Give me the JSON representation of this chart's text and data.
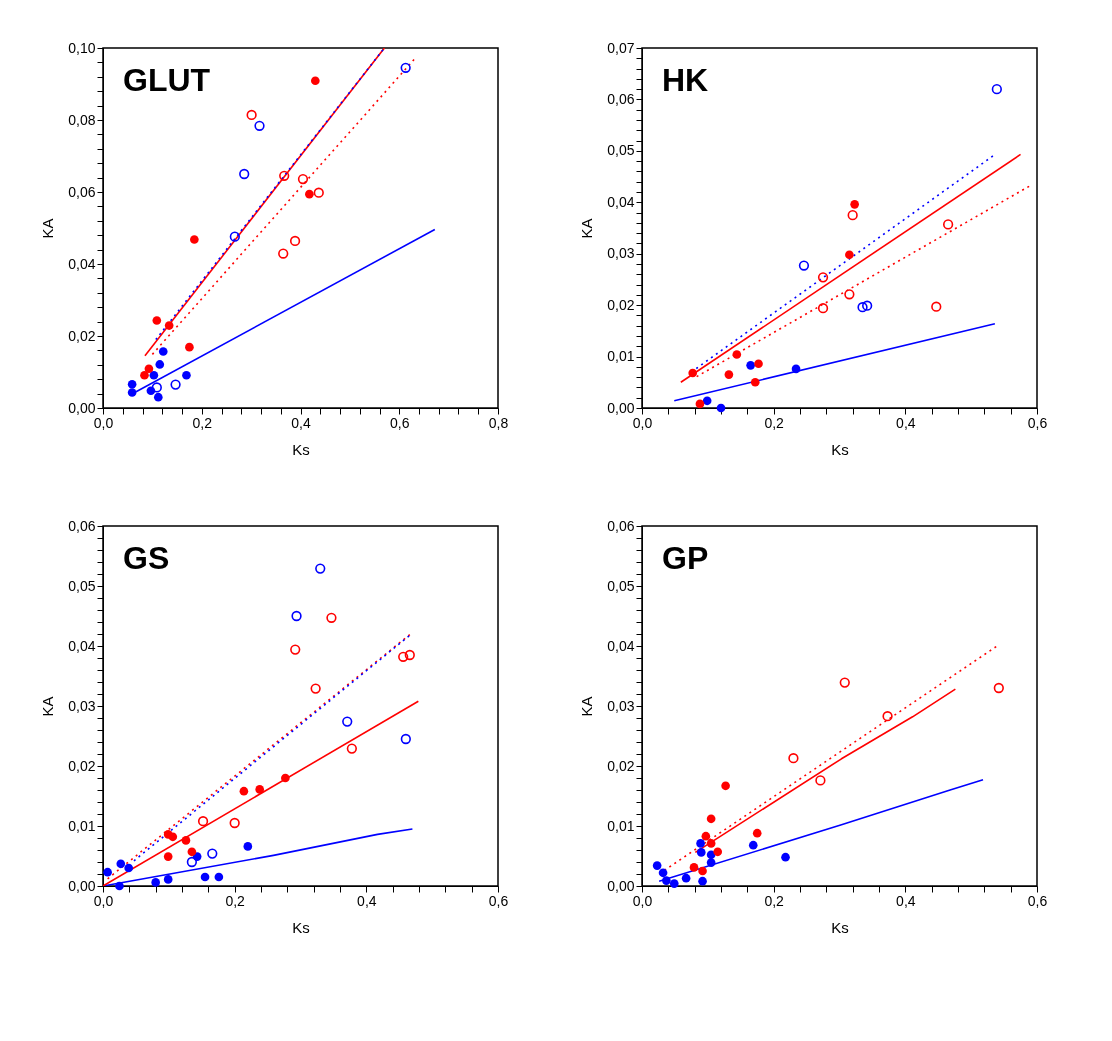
{
  "chart_data": [
    {
      "type": "scatter",
      "title": "GLUT",
      "xlabel": "Ks",
      "ylabel": "KA",
      "grid": false,
      "xlim": [
        0,
        0.8
      ],
      "ylim": [
        0,
        0.1
      ],
      "xticks": [
        {
          "value": 0,
          "label": "0,0"
        },
        {
          "value": 0.04,
          "label": null
        },
        {
          "value": 0.08,
          "label": null
        },
        {
          "value": 0.12,
          "label": null
        },
        {
          "value": 0.16,
          "label": null
        },
        {
          "value": 0.2,
          "label": "0,2"
        },
        {
          "value": 0.24,
          "label": null
        },
        {
          "value": 0.28,
          "label": null
        },
        {
          "value": 0.32,
          "label": null
        },
        {
          "value": 0.36,
          "label": null
        },
        {
          "value": 0.4,
          "label": "0,4"
        },
        {
          "value": 0.44,
          "label": null
        },
        {
          "value": 0.48,
          "label": null
        },
        {
          "value": 0.52,
          "label": null
        },
        {
          "value": 0.56,
          "label": null
        },
        {
          "value": 0.6,
          "label": "0,6"
        },
        {
          "value": 0.64,
          "label": null
        },
        {
          "value": 0.68,
          "label": null
        },
        {
          "value": 0.72,
          "label": null
        },
        {
          "value": 0.76,
          "label": null
        },
        {
          "value": 0.8,
          "label": "0,8"
        }
      ],
      "yticks": [
        {
          "value": 0,
          "label": "0,00"
        },
        {
          "value": 0.004,
          "label": null
        },
        {
          "value": 0.008,
          "label": null
        },
        {
          "value": 0.012,
          "label": null
        },
        {
          "value": 0.016,
          "label": null
        },
        {
          "value": 0.02,
          "label": "0,02"
        },
        {
          "value": 0.024,
          "label": null
        },
        {
          "value": 0.028,
          "label": null
        },
        {
          "value": 0.032,
          "label": null
        },
        {
          "value": 0.036,
          "label": null
        },
        {
          "value": 0.04,
          "label": "0,04"
        },
        {
          "value": 0.044,
          "label": null
        },
        {
          "value": 0.048,
          "label": null
        },
        {
          "value": 0.052,
          "label": null
        },
        {
          "value": 0.056,
          "label": null
        },
        {
          "value": 0.06,
          "label": "0,06"
        },
        {
          "value": 0.064,
          "label": null
        },
        {
          "value": 0.068,
          "label": null
        },
        {
          "value": 0.072,
          "label": null
        },
        {
          "value": 0.076,
          "label": null
        },
        {
          "value": 0.08,
          "label": "0,08"
        },
        {
          "value": 0.084,
          "label": null
        },
        {
          "value": 0.088,
          "label": null
        },
        {
          "value": 0.092,
          "label": null
        },
        {
          "value": 0.096,
          "label": null
        },
        {
          "value": 0.1,
          "label": "0,10"
        }
      ],
      "series": [
        {
          "type": "line",
          "color": "#0000ff",
          "line_style": "solid",
          "marker": "none",
          "x": [
            0.067,
            0.672
          ],
          "values": [
            0.0045,
            0.0496
          ]
        },
        {
          "type": "line",
          "color": "#ff0000",
          "line_style": "dotted",
          "marker": "none",
          "x": [
            0.1,
            0.63
          ],
          "values": [
            0.0149,
            0.0968
          ]
        },
        {
          "type": "line",
          "color": "#ff0000",
          "line_style": "solid",
          "marker": "none",
          "x": [
            0.085,
            0.57
          ],
          "values": [
            0.0145,
            0.1
          ]
        },
        {
          "type": "line",
          "color": "#0000ff",
          "line_style": "dotted",
          "marker": "none",
          "x": [
            0.107,
            0.567
          ],
          "values": [
            0.019,
            0.0995
          ]
        },
        {
          "color": "#0000ff",
          "marker": "circle",
          "x": [
            0.059,
            0.059,
            0.097,
            0.112,
            0.103,
            0.115,
            0.122,
            0.169
          ],
          "values": [
            0.0066,
            0.0043,
            0.0048,
            0.003,
            0.0091,
            0.0121,
            0.0157,
            0.0091
          ]
        },
        {
          "color": "#0000ff",
          "marker": "open circle",
          "x": [
            0.109,
            0.147,
            0.267,
            0.286,
            0.317,
            0.613
          ],
          "values": [
            0.0057,
            0.0065,
            0.0476,
            0.065,
            0.0784,
            0.0945
          ]
        },
        {
          "color": "#ff0000",
          "marker": "circle",
          "x": [
            0.084,
            0.093,
            0.109,
            0.134,
            0.175,
            0.185,
            0.418,
            0.43
          ],
          "values": [
            0.0091,
            0.0109,
            0.0243,
            0.0229,
            0.0169,
            0.0468,
            0.0594,
            0.0909
          ]
        },
        {
          "color": "#ff0000",
          "marker": "open circle",
          "x": [
            0.301,
            0.367,
            0.405,
            0.437,
            0.365,
            0.389
          ],
          "values": [
            0.0814,
            0.0645,
            0.0636,
            0.0598,
            0.0429,
            0.0464
          ]
        }
      ]
    },
    {
      "type": "scatter",
      "title": "HK",
      "xlabel": "Ks",
      "ylabel": "KA",
      "grid": false,
      "xlim": [
        0,
        0.6
      ],
      "ylim": [
        0,
        0.07
      ],
      "xticks": [
        {
          "value": 0,
          "label": "0,0"
        },
        {
          "value": 0.04,
          "label": null
        },
        {
          "value": 0.08,
          "label": null
        },
        {
          "value": 0.12,
          "label": null
        },
        {
          "value": 0.16,
          "label": null
        },
        {
          "value": 0.2,
          "label": "0,2"
        },
        {
          "value": 0.24,
          "label": null
        },
        {
          "value": 0.28,
          "label": null
        },
        {
          "value": 0.32,
          "label": null
        },
        {
          "value": 0.36,
          "label": null
        },
        {
          "value": 0.4,
          "label": "0,4"
        },
        {
          "value": 0.44,
          "label": null
        },
        {
          "value": 0.48,
          "label": null
        },
        {
          "value": 0.52,
          "label": null
        },
        {
          "value": 0.56,
          "label": null
        },
        {
          "value": 0.6,
          "label": "0,6"
        }
      ],
      "yticks": [
        {
          "value": 0,
          "label": "0,00"
        },
        {
          "value": 0.002,
          "label": null
        },
        {
          "value": 0.004,
          "label": null
        },
        {
          "value": 0.006,
          "label": null
        },
        {
          "value": 0.008,
          "label": null
        },
        {
          "value": 0.01,
          "label": "0,01"
        },
        {
          "value": 0.012,
          "label": null
        },
        {
          "value": 0.014,
          "label": null
        },
        {
          "value": 0.016,
          "label": null
        },
        {
          "value": 0.018,
          "label": null
        },
        {
          "value": 0.02,
          "label": "0,02"
        },
        {
          "value": 0.022,
          "label": null
        },
        {
          "value": 0.024,
          "label": null
        },
        {
          "value": 0.026,
          "label": null
        },
        {
          "value": 0.028,
          "label": null
        },
        {
          "value": 0.03,
          "label": "0,03"
        },
        {
          "value": 0.032,
          "label": null
        },
        {
          "value": 0.034,
          "label": null
        },
        {
          "value": 0.036,
          "label": null
        },
        {
          "value": 0.038,
          "label": null
        },
        {
          "value": 0.04,
          "label": "0,04"
        },
        {
          "value": 0.042,
          "label": null
        },
        {
          "value": 0.044,
          "label": null
        },
        {
          "value": 0.046,
          "label": null
        },
        {
          "value": 0.048,
          "label": null
        },
        {
          "value": 0.05,
          "label": "0,05"
        },
        {
          "value": 0.052,
          "label": null
        },
        {
          "value": 0.054,
          "label": null
        },
        {
          "value": 0.056,
          "label": null
        },
        {
          "value": 0.058,
          "label": null
        },
        {
          "value": 0.06,
          "label": "0,06"
        },
        {
          "value": 0.062,
          "label": null
        },
        {
          "value": 0.064,
          "label": null
        },
        {
          "value": 0.066,
          "label": null
        },
        {
          "value": 0.068,
          "label": null
        },
        {
          "value": 0.07,
          "label": "0,07"
        }
      ],
      "series": [
        {
          "type": "line",
          "color": "#0000ff",
          "line_style": "solid",
          "marker": "none",
          "x": [
            0.049,
            0.536
          ],
          "values": [
            0.0014,
            0.0164
          ]
        },
        {
          "type": "line",
          "color": "#0000ff",
          "line_style": "dotted",
          "marker": "none",
          "x": [
            0.075,
            0.533
          ],
          "values": [
            0.007,
            0.049
          ]
        },
        {
          "type": "line",
          "color": "#ff0000",
          "line_style": "dotted",
          "marker": "none",
          "x": [
            0.083,
            0.588
          ],
          "values": [
            0.0061,
            0.0431
          ]
        },
        {
          "type": "line",
          "color": "#ff0000",
          "line_style": "solid",
          "marker": "none",
          "x": [
            0.059,
            0.575
          ],
          "values": [
            0.005,
            0.0493
          ]
        },
        {
          "color": "#0000ff",
          "marker": "circle",
          "x": [
            0.099,
            0.12,
            0.165,
            0.234
          ],
          "values": [
            0.0014,
            0.0,
            0.0083,
            0.0076
          ]
        },
        {
          "color": "#0000ff",
          "marker": "open circle",
          "x": [
            0.246,
            0.335,
            0.342,
            0.539
          ],
          "values": [
            0.0277,
            0.0196,
            0.0199,
            0.062
          ]
        },
        {
          "color": "#ff0000",
          "marker": "circle",
          "x": [
            0.077,
            0.088,
            0.132,
            0.144,
            0.172,
            0.177,
            0.315,
            0.323
          ],
          "values": [
            0.0068,
            0.0008,
            0.0065,
            0.0104,
            0.005,
            0.0086,
            0.0298,
            0.0396
          ]
        },
        {
          "color": "#ff0000",
          "marker": "open circle",
          "x": [
            0.275,
            0.275,
            0.315,
            0.32,
            0.447,
            0.465
          ],
          "values": [
            0.0254,
            0.0194,
            0.0221,
            0.0375,
            0.0197,
            0.0357
          ]
        }
      ]
    },
    {
      "type": "scatter",
      "title": "GS",
      "xlabel": "Ks",
      "ylabel": "KA",
      "grid": false,
      "xlim": [
        0,
        0.6
      ],
      "ylim": [
        0,
        0.06
      ],
      "xticks": [
        {
          "value": 0,
          "label": "0,0"
        },
        {
          "value": 0.04,
          "label": null
        },
        {
          "value": 0.08,
          "label": null
        },
        {
          "value": 0.12,
          "label": null
        },
        {
          "value": 0.16,
          "label": null
        },
        {
          "value": 0.2,
          "label": "0,2"
        },
        {
          "value": 0.24,
          "label": null
        },
        {
          "value": 0.28,
          "label": null
        },
        {
          "value": 0.32,
          "label": null
        },
        {
          "value": 0.36,
          "label": null
        },
        {
          "value": 0.4,
          "label": "0,4"
        },
        {
          "value": 0.44,
          "label": null
        },
        {
          "value": 0.48,
          "label": null
        },
        {
          "value": 0.52,
          "label": null
        },
        {
          "value": 0.56,
          "label": null
        },
        {
          "value": 0.6,
          "label": "0,6"
        }
      ],
      "yticks": [
        {
          "value": 0,
          "label": "0,00"
        },
        {
          "value": 0.002,
          "label": null
        },
        {
          "value": 0.004,
          "label": null
        },
        {
          "value": 0.006,
          "label": null
        },
        {
          "value": 0.008,
          "label": null
        },
        {
          "value": 0.01,
          "label": "0,01"
        },
        {
          "value": 0.012,
          "label": null
        },
        {
          "value": 0.014,
          "label": null
        },
        {
          "value": 0.016,
          "label": null
        },
        {
          "value": 0.018,
          "label": null
        },
        {
          "value": 0.02,
          "label": "0,02"
        },
        {
          "value": 0.022,
          "label": null
        },
        {
          "value": 0.024,
          "label": null
        },
        {
          "value": 0.026,
          "label": null
        },
        {
          "value": 0.028,
          "label": null
        },
        {
          "value": 0.03,
          "label": "0,03"
        },
        {
          "value": 0.032,
          "label": null
        },
        {
          "value": 0.034,
          "label": null
        },
        {
          "value": 0.036,
          "label": null
        },
        {
          "value": 0.038,
          "label": null
        },
        {
          "value": 0.04,
          "label": "0,04"
        },
        {
          "value": 0.042,
          "label": null
        },
        {
          "value": 0.044,
          "label": null
        },
        {
          "value": 0.046,
          "label": null
        },
        {
          "value": 0.048,
          "label": null
        },
        {
          "value": 0.05,
          "label": "0,05"
        },
        {
          "value": 0.052,
          "label": null
        },
        {
          "value": 0.054,
          "label": null
        },
        {
          "value": 0.056,
          "label": null
        },
        {
          "value": 0.058,
          "label": null
        },
        {
          "value": 0.06,
          "label": "0,06"
        }
      ],
      "series": [
        {
          "type": "line",
          "color": "#0000ff",
          "line_style": "solid",
          "marker": "none",
          "x": [
            0.0,
            0.259,
            0.417,
            0.47
          ],
          "values": [
            0.0,
            0.0051,
            0.0086,
            0.0095
          ]
        },
        {
          "type": "line",
          "color": "#ff0000",
          "line_style": "dotted",
          "marker": "none",
          "x": [
            0.007,
            0.466
          ],
          "values": [
            0.0012,
            0.0419
          ]
        },
        {
          "type": "line",
          "color": "#0000ff",
          "line_style": "dotted",
          "marker": "none",
          "x": [
            0.047,
            0.465
          ],
          "values": [
            0.0042,
            0.0417
          ]
        },
        {
          "type": "line",
          "color": "#ff0000",
          "line_style": "solid",
          "marker": "none",
          "x": [
            0.0,
            0.479
          ],
          "values": [
            0.0,
            0.0308
          ]
        },
        {
          "color": "#0000ff",
          "marker": "circle",
          "x": [
            0.007,
            0.025,
            0.027,
            0.039,
            0.08,
            0.099,
            0.143,
            0.155,
            0.176,
            0.22
          ],
          "values": [
            0.0023,
            0.0,
            0.0037,
            0.003,
            0.0006,
            0.0011,
            0.0049,
            0.0015,
            0.0015,
            0.0066
          ]
        },
        {
          "color": "#0000ff",
          "marker": "open circle",
          "x": [
            0.135,
            0.166,
            0.294,
            0.33,
            0.371,
            0.46
          ],
          "values": [
            0.004,
            0.0054,
            0.045,
            0.0529,
            0.0274,
            0.0245
          ]
        },
        {
          "color": "#ff0000",
          "marker": "circle",
          "x": [
            0.099,
            0.106,
            0.099,
            0.126,
            0.135,
            0.214,
            0.238,
            0.277
          ],
          "values": [
            0.0086,
            0.0082,
            0.0049,
            0.0076,
            0.0057,
            0.0158,
            0.0161,
            0.018
          ]
        },
        {
          "color": "#ff0000",
          "marker": "open circle",
          "x": [
            0.152,
            0.2,
            0.292,
            0.323,
            0.347,
            0.378,
            0.456,
            0.466
          ],
          "values": [
            0.0108,
            0.0105,
            0.0394,
            0.0329,
            0.0447,
            0.0229,
            0.0382,
            0.0385
          ]
        }
      ]
    },
    {
      "type": "scatter",
      "title": "GP",
      "xlabel": "Ks",
      "ylabel": "KA",
      "grid": false,
      "xlim": [
        0,
        0.6
      ],
      "ylim": [
        0,
        0.06
      ],
      "xticks": [
        {
          "value": 0,
          "label": "0,0"
        },
        {
          "value": 0.04,
          "label": null
        },
        {
          "value": 0.08,
          "label": null
        },
        {
          "value": 0.12,
          "label": null
        },
        {
          "value": 0.16,
          "label": null
        },
        {
          "value": 0.2,
          "label": "0,2"
        },
        {
          "value": 0.24,
          "label": null
        },
        {
          "value": 0.28,
          "label": null
        },
        {
          "value": 0.32,
          "label": null
        },
        {
          "value": 0.36,
          "label": null
        },
        {
          "value": 0.4,
          "label": "0,4"
        },
        {
          "value": 0.44,
          "label": null
        },
        {
          "value": 0.48,
          "label": null
        },
        {
          "value": 0.52,
          "label": null
        },
        {
          "value": 0.56,
          "label": null
        },
        {
          "value": 0.6,
          "label": "0,6"
        }
      ],
      "yticks": [
        {
          "value": 0,
          "label": "0,00"
        },
        {
          "value": 0.002,
          "label": null
        },
        {
          "value": 0.004,
          "label": null
        },
        {
          "value": 0.006,
          "label": null
        },
        {
          "value": 0.008,
          "label": null
        },
        {
          "value": 0.01,
          "label": "0,01"
        },
        {
          "value": 0.012,
          "label": null
        },
        {
          "value": 0.014,
          "label": null
        },
        {
          "value": 0.016,
          "label": null
        },
        {
          "value": 0.018,
          "label": null
        },
        {
          "value": 0.02,
          "label": "0,02"
        },
        {
          "value": 0.022,
          "label": null
        },
        {
          "value": 0.024,
          "label": null
        },
        {
          "value": 0.026,
          "label": null
        },
        {
          "value": 0.028,
          "label": null
        },
        {
          "value": 0.03,
          "label": "0,03"
        },
        {
          "value": 0.032,
          "label": null
        },
        {
          "value": 0.034,
          "label": null
        },
        {
          "value": 0.036,
          "label": null
        },
        {
          "value": 0.038,
          "label": null
        },
        {
          "value": 0.04,
          "label": "0,04"
        },
        {
          "value": 0.042,
          "label": null
        },
        {
          "value": 0.044,
          "label": null
        },
        {
          "value": 0.046,
          "label": null
        },
        {
          "value": 0.048,
          "label": null
        },
        {
          "value": 0.05,
          "label": "0,05"
        },
        {
          "value": 0.052,
          "label": null
        },
        {
          "value": 0.054,
          "label": null
        },
        {
          "value": 0.056,
          "label": null
        },
        {
          "value": 0.058,
          "label": null
        },
        {
          "value": 0.06,
          "label": "0,06"
        }
      ],
      "series": [
        {
          "type": "line",
          "color": "#0000ff",
          "line_style": "solid",
          "marker": "none",
          "x": [
            0.026,
            0.303,
            0.468,
            0.518
          ],
          "values": [
            0.0008,
            0.0102,
            0.016,
            0.0177
          ]
        },
        {
          "type": "line",
          "color": "#ff0000",
          "line_style": "dotted",
          "marker": "none",
          "x": [
            0.034,
            0.538
          ],
          "values": [
            0.0026,
            0.0399
          ]
        },
        {
          "type": "line",
          "color": "#ff0000",
          "line_style": "solid",
          "marker": "none",
          "x": [
            0.081,
            0.303,
            0.411,
            0.476
          ],
          "values": [
            0.0056,
            0.0212,
            0.0282,
            0.0328
          ]
        },
        {
          "color": "#0000ff",
          "marker": "circle",
          "x": [
            0.023,
            0.032,
            0.037,
            0.049,
            0.067,
            0.089,
            0.09,
            0.092,
            0.105,
            0.105,
            0.169,
            0.218
          ],
          "values": [
            0.0034,
            0.0022,
            0.0009,
            0.0004,
            0.0013,
            0.0071,
            0.0056,
            0.0008,
            0.0052,
            0.0039,
            0.0068,
            0.0048
          ]
        },
        {
          "color": "#ff0000",
          "marker": "circle",
          "x": [
            0.079,
            0.092,
            0.097,
            0.105,
            0.105,
            0.115,
            0.127,
            0.175
          ],
          "values": [
            0.0031,
            0.0025,
            0.0083,
            0.0071,
            0.0112,
            0.0057,
            0.0167,
            0.0088
          ]
        },
        {
          "color": "#ff0000",
          "marker": "open circle",
          "x": [
            0.23,
            0.271,
            0.308,
            0.373,
            0.542
          ],
          "values": [
            0.0213,
            0.0176,
            0.0339,
            0.0283,
            0.033
          ]
        }
      ]
    }
  ]
}
